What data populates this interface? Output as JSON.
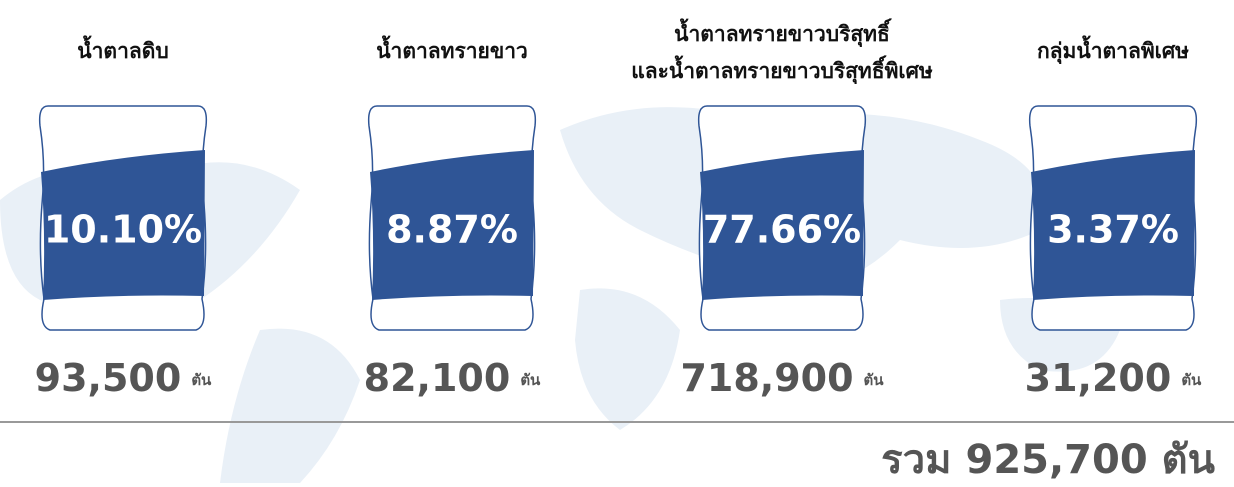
{
  "items": [
    {
      "title": [
        "น้ำตาลดิบ"
      ],
      "percent": "10.10%",
      "amount": "93,500",
      "unit": "ตัน"
    },
    {
      "title": [
        "น้ำตาลทรายขาว"
      ],
      "percent": "8.87%",
      "amount": "82,100",
      "unit": "ตัน"
    },
    {
      "title": [
        "น้ำตาลทรายขาวบริสุทธิ์",
        "และน้ำตาลทรายขาวบริสุทธิ์พิเศษ"
      ],
      "percent": "77.66%",
      "amount": "718,900",
      "unit": "ตัน"
    },
    {
      "title": [
        "กลุ่มน้ำตาลพิเศษ"
      ],
      "percent": "3.37%",
      "amount": "31,200",
      "unit": "ตัน"
    }
  ],
  "total": {
    "label": "รวม",
    "amount": "925,700",
    "unit": "ตัน"
  }
}
